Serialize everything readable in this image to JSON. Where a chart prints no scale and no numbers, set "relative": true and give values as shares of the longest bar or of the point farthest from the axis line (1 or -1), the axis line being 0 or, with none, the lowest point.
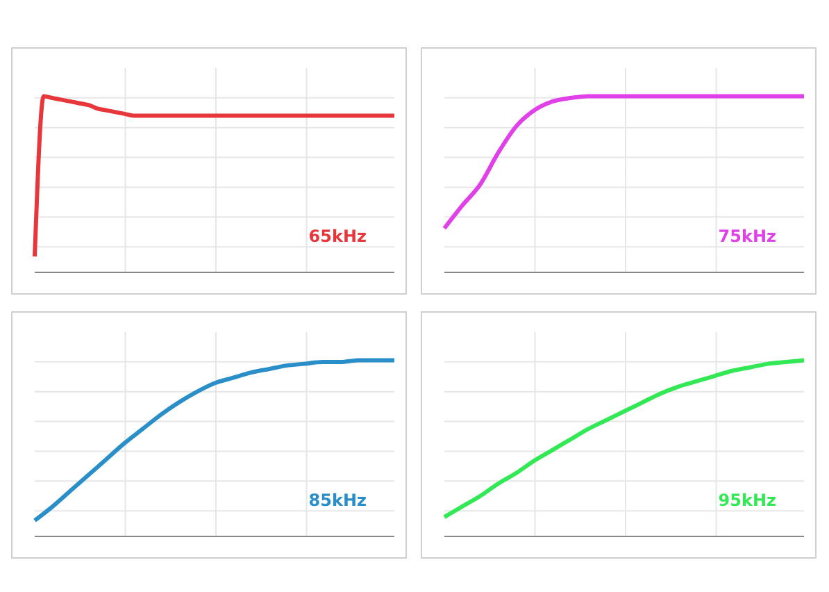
{
  "chart_data": [
    {
      "type": "line",
      "relative": true,
      "grid": true,
      "tick_labels": false,
      "marker": "none",
      "categories": [
        null,
        null,
        null,
        null,
        null,
        null,
        null,
        null,
        null,
        null,
        null,
        null,
        null,
        null,
        null,
        null,
        null,
        null,
        null,
        null,
        null,
        null,
        null,
        null,
        null,
        null,
        null,
        null,
        null,
        null,
        null,
        null,
        null,
        null,
        null,
        null,
        null,
        null,
        null,
        null,
        null
      ],
      "series": [
        {
          "color": "#e8373a",
          "values": [
            0.09,
            1,
            0.99,
            0.98,
            0.97,
            0.96,
            0.95,
            0.93,
            0.92,
            0.91,
            0.9,
            0.89,
            0.89,
            0.89,
            0.89,
            0.89,
            0.89,
            0.89,
            0.89,
            0.89,
            0.89,
            0.89,
            0.89,
            0.89,
            0.89,
            0.89,
            0.89,
            0.89,
            0.89,
            0.89,
            0.89,
            0.89,
            0.89,
            0.89,
            0.89,
            0.89,
            0.89,
            0.89,
            0.89,
            0.89,
            0.89
          ]
        }
      ],
      "annotations": [
        "65kHz"
      ]
    },
    {
      "type": "line",
      "relative": true,
      "grid": true,
      "tick_labels": false,
      "marker": "none",
      "categories": [
        null,
        null,
        null,
        null,
        null,
        null,
        null,
        null,
        null,
        null,
        null,
        null,
        null,
        null,
        null,
        null,
        null,
        null,
        null,
        null,
        null
      ],
      "series": [
        {
          "color": "#e040e8",
          "values": [
            0.25,
            0.38,
            0.5,
            0.68,
            0.83,
            0.92,
            0.97,
            0.99,
            1,
            1,
            1,
            1,
            1,
            1,
            1,
            1,
            1,
            1,
            1,
            1,
            1
          ]
        }
      ],
      "annotations": [
        "75kHz"
      ]
    },
    {
      "type": "line",
      "relative": true,
      "grid": true,
      "tick_labels": false,
      "marker": "none",
      "categories": [
        null,
        null,
        null,
        null,
        null,
        null,
        null,
        null,
        null,
        null,
        null,
        null,
        null,
        null,
        null,
        null,
        null,
        null,
        null,
        null,
        null
      ],
      "series": [
        {
          "color": "#2a8fc8",
          "values": [
            0.09,
            0.17,
            0.26,
            0.35,
            0.44,
            0.53,
            0.61,
            0.69,
            0.76,
            0.82,
            0.87,
            0.9,
            0.93,
            0.95,
            0.97,
            0.98,
            0.99,
            0.99,
            1,
            1,
            1
          ]
        }
      ],
      "annotations": [
        "85kHz"
      ]
    },
    {
      "type": "line",
      "relative": true,
      "grid": true,
      "tick_labels": false,
      "marker": "none",
      "categories": [
        null,
        null,
        null,
        null,
        null,
        null,
        null,
        null,
        null,
        null,
        null,
        null,
        null,
        null,
        null,
        null,
        null,
        null,
        null,
        null,
        null
      ],
      "series": [
        {
          "color": "#33e855",
          "values": [
            0.11,
            0.17,
            0.23,
            0.3,
            0.36,
            0.43,
            0.49,
            0.55,
            0.61,
            0.66,
            0.71,
            0.76,
            0.81,
            0.85,
            0.88,
            0.91,
            0.94,
            0.96,
            0.98,
            0.99,
            1
          ]
        }
      ],
      "annotations": [
        "95kHz"
      ]
    }
  ]
}
